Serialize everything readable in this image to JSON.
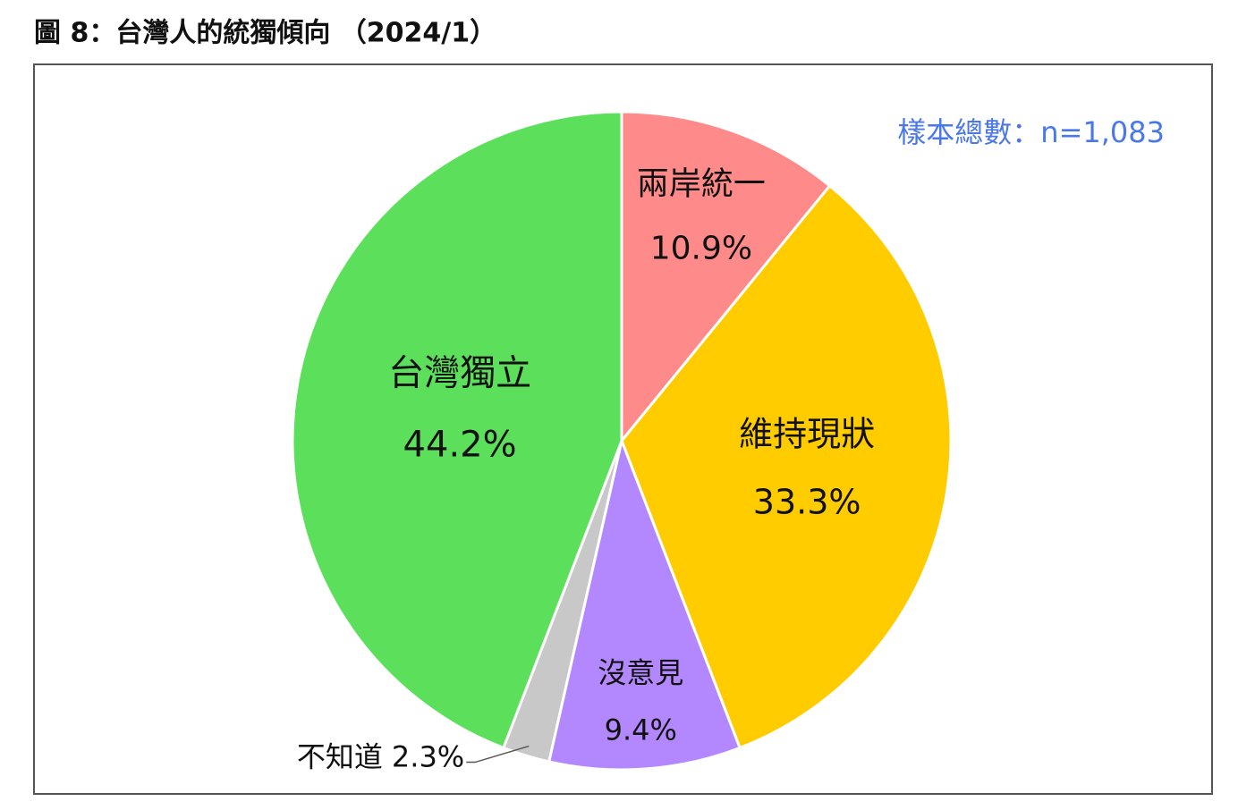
{
  "chart_data": {
    "type": "pie",
    "title": "圖 8：台灣人的統獨傾向 （2024/1）",
    "annotation": "樣本總數：n=1,083",
    "categories": [
      "兩岸統一",
      "維持現狀",
      "沒意見",
      "不知道",
      "台灣獨立"
    ],
    "values": [
      10.9,
      33.3,
      9.4,
      2.3,
      44.2
    ],
    "value_labels": [
      "10.9%",
      "33.3%",
      "9.4%",
      "2.3%",
      "44.2%"
    ],
    "colors": [
      "#ff8a8a",
      "#ffcc00",
      "#b388ff",
      "#c8c8c8",
      "#5ce05c"
    ]
  }
}
